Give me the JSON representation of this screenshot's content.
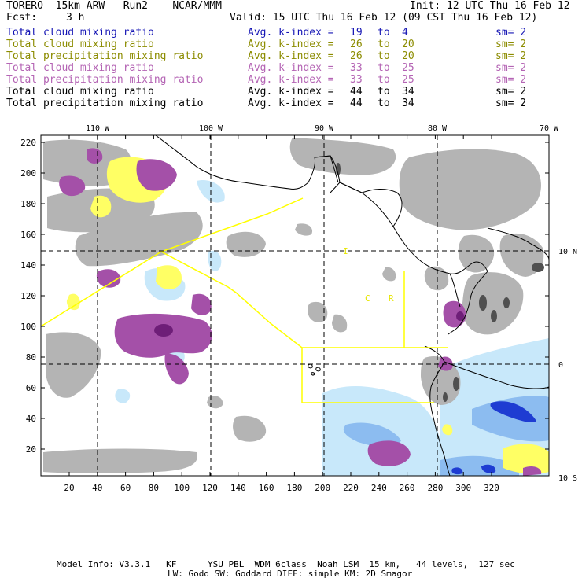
{
  "header": {
    "model": "TORERO  15km ARW   Run2    NCAR/MMM",
    "init": "Init: 12 UTC Thu 16 Feb 12",
    "fcst_label": "Fcst:",
    "fcst_value": "3 h",
    "valid": "Valid: 15 UTC Thu 16 Feb 12 (09 CST Thu 16 Feb 12)"
  },
  "legend": [
    {
      "name": "Total cloud mixing ratio",
      "avg": "Avg. k-index =",
      "from": "19",
      "to": "to",
      "hi": "4",
      "sm": "sm= 2",
      "color": "#1414b4"
    },
    {
      "name": "Total cloud mixing ratio",
      "avg": "Avg. k-index =",
      "from": "26",
      "to": "to",
      "hi": "20",
      "sm": "sm= 2",
      "color": "#8c8c00"
    },
    {
      "name": "Total precipitation mixing ratio",
      "avg": "Avg. k-index =",
      "from": "26",
      "to": "to",
      "hi": "20",
      "sm": "sm= 2",
      "color": "#8c8c00"
    },
    {
      "name": "Total cloud mixing ratio",
      "avg": "Avg. k-index =",
      "from": "33",
      "to": "to",
      "hi": "25",
      "sm": "sm= 2",
      "color": "#b464b4"
    },
    {
      "name": "Total precipitation mixing ratio",
      "avg": "Avg. k-index =",
      "from": "33",
      "to": "to",
      "hi": "25",
      "sm": "sm= 2",
      "color": "#b464b4"
    },
    {
      "name": "Total cloud mixing ratio",
      "avg": "Avg. k-index =",
      "from": "44",
      "to": "to",
      "hi": "34",
      "sm": "sm= 2",
      "color": "#000000"
    },
    {
      "name": "Total precipitation mixing ratio",
      "avg": "Avg. k-index =",
      "from": "44",
      "to": "to",
      "hi": "34",
      "sm": "sm= 2",
      "color": "#000000"
    }
  ],
  "map": {
    "lon_labels": [
      "110 W",
      "100 W",
      "90 W",
      "80 W",
      "70 W"
    ],
    "lat_labels": [
      "10 N",
      "0",
      "10 S"
    ],
    "x_ticks": [
      "20",
      "40",
      "60",
      "80",
      "100",
      "120",
      "140",
      "160",
      "180",
      "200",
      "220",
      "240",
      "260",
      "280",
      "300",
      "320"
    ],
    "y_ticks": [
      "220",
      "200",
      "180",
      "160",
      "140",
      "120",
      "100",
      "80",
      "60",
      "40",
      "20"
    ],
    "place_labels": [
      "I",
      "C",
      "R"
    ]
  },
  "footer": {
    "line1": "Model Info: V3.3.1   KF      YSU PBL  WDM 6class  Noah LSM  15 km,   44 levels,  127 sec",
    "line2": "LW: Godd SW: Goddard DIFF: simple KM: 2D Smagor"
  }
}
